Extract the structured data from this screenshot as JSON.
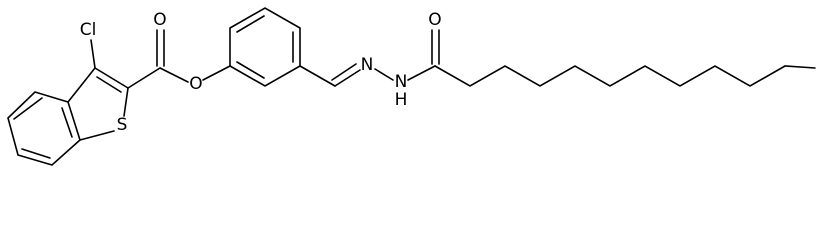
{
  "molecule": {
    "atoms": [
      {
        "label": "Cl"
      },
      {
        "label": "O"
      },
      {
        "label": "O"
      },
      {
        "label": "S"
      },
      {
        "label": "N"
      },
      {
        "label": "N"
      },
      {
        "label": "H"
      },
      {
        "label": "O"
      }
    ]
  }
}
